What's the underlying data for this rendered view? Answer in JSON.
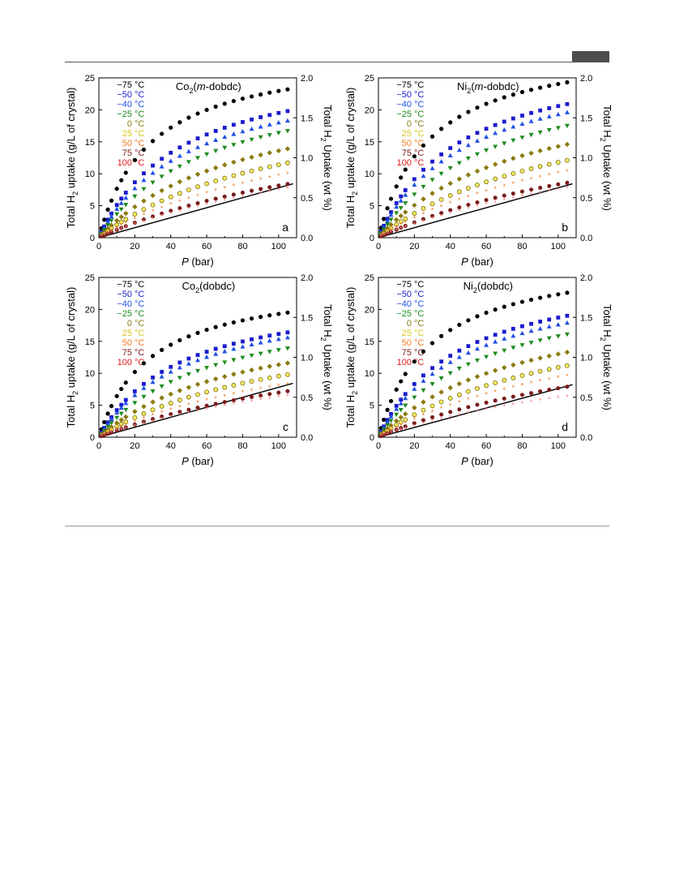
{
  "axes_text": {
    "left_label": "Total H2 uptake (g/L of crystal)",
    "right_label": "Total H2 Uptake (wt %)",
    "x_label_italic": "P",
    "x_label_rest": " (bar)"
  },
  "colors": {
    "-75": "#000000",
    "-50": "#1a1acc",
    "-40": "#1f4fe6",
    "-25": "#1c8a1c",
    "0": "#8a7a10",
    "25": "#d8c61a",
    "50": "#f07a20",
    "75": "#7a1a1a",
    "100": "#e01818",
    "fill_25": "#f8f06a",
    "star_100": "#f08080"
  },
  "chart_data": [
    {
      "type": "scatter",
      "panel_letter": "a",
      "title_pre": "Co",
      "title_sub": "2",
      "title_open": "(",
      "title_ital": "m",
      "title_post": "-dobdc)",
      "xlim": [
        0,
        110
      ],
      "ylim": [
        0,
        25
      ],
      "y2lim": [
        0,
        2.0
      ],
      "xticks": [
        0,
        20,
        40,
        60,
        80,
        100
      ],
      "yticks": [
        0,
        5,
        10,
        15,
        20,
        25
      ],
      "y2ticks": [
        "0.0",
        "0.5",
        "1.0",
        "1.5",
        "2.0"
      ],
      "line_end": 8.2,
      "legend": [
        "−75 °C",
        "−50 °C",
        "−40 °C",
        "−25 °C",
        "0 °C",
        "25 °C",
        "50 °C",
        "75 °C",
        "100 °C"
      ],
      "series_keys": [
        "-75",
        "-50",
        "-40",
        "-25",
        "0",
        "25",
        "50",
        "75",
        "100"
      ],
      "ymax_at_105": [
        23.2,
        19.8,
        18.3,
        16.7,
        13.9,
        11.7,
        9.9,
        8.4,
        7.6
      ]
    },
    {
      "type": "scatter",
      "panel_letter": "b",
      "title_pre": "Ni",
      "title_sub": "2",
      "title_open": "(",
      "title_ital": "m",
      "title_post": "-dobdc)",
      "xlim": [
        0,
        110
      ],
      "ylim": [
        0,
        25
      ],
      "y2lim": [
        0,
        2.0
      ],
      "xticks": [
        0,
        20,
        40,
        60,
        80,
        100
      ],
      "yticks": [
        0,
        5,
        10,
        15,
        20,
        25
      ],
      "y2ticks": [
        "0.0",
        "0.5",
        "1.0",
        "1.5",
        "2.0"
      ],
      "line_end": 8.2,
      "legend": [
        "−75 °C",
        "−50 °C",
        "−40 °C",
        "−25 °C",
        "0 °C",
        "25 °C",
        "50 °C",
        "75 °C",
        "100 °C"
      ],
      "series_keys": [
        "-75",
        "-50",
        "-40",
        "-25",
        "0",
        "25",
        "50",
        "75",
        "100"
      ],
      "ymax_at_105": [
        24.3,
        20.9,
        19.6,
        17.5,
        14.6,
        12.1,
        10.3,
        8.6,
        7.7
      ]
    },
    {
      "type": "scatter",
      "panel_letter": "c",
      "title_pre": "Co",
      "title_sub": "2",
      "title_open": "(",
      "title_ital": "",
      "title_post": "dobdc)",
      "xlim": [
        0,
        110
      ],
      "ylim": [
        0,
        25
      ],
      "y2lim": [
        0,
        2.0
      ],
      "xticks": [
        0,
        20,
        40,
        60,
        80,
        100
      ],
      "yticks": [
        0,
        5,
        10,
        15,
        20,
        25
      ],
      "y2ticks": [
        "0.0",
        "0.5",
        "1.0",
        "1.5",
        "2.0"
      ],
      "line_end": 8.2,
      "legend": [
        "−75 °C",
        "−50 °C",
        "−40 °C",
        "−25 °C",
        "0 °C",
        "25 °C",
        "50 °C",
        "75 °C",
        "100 °C"
      ],
      "series_keys": [
        "-75",
        "-50",
        "-40",
        "-25",
        "0",
        "25",
        "50",
        "75",
        "100"
      ],
      "ymax_at_105": [
        19.5,
        16.4,
        15.6,
        13.9,
        11.6,
        9.8,
        8.2,
        7.2,
        6.4
      ]
    },
    {
      "type": "scatter",
      "panel_letter": "d",
      "title_pre": "Ni",
      "title_sub": "2",
      "title_open": "(",
      "title_ital": "",
      "title_post": "dobdc)",
      "xlim": [
        0,
        110
      ],
      "ylim": [
        0,
        25
      ],
      "y2lim": [
        0,
        2.0
      ],
      "xticks": [
        0,
        20,
        40,
        60,
        80,
        100
      ],
      "yticks": [
        0,
        5,
        10,
        15,
        20,
        25
      ],
      "y2ticks": [
        "0.0",
        "0.5",
        "1.0",
        "1.5",
        "2.0"
      ],
      "line_end": 8.0,
      "legend": [
        "−75 °C",
        "−50 °C",
        "−40 °C",
        "−25 °C",
        "0 °C",
        "25 °C",
        "50 °C",
        "75 °C",
        "100 °C"
      ],
      "series_keys": [
        "-75",
        "-50",
        "-40",
        "-25",
        "0",
        "25",
        "50",
        "75",
        "100"
      ],
      "ymax_at_105": [
        22.6,
        19.0,
        17.9,
        16.1,
        13.3,
        11.2,
        9.5,
        7.9,
        6.3
      ]
    }
  ]
}
